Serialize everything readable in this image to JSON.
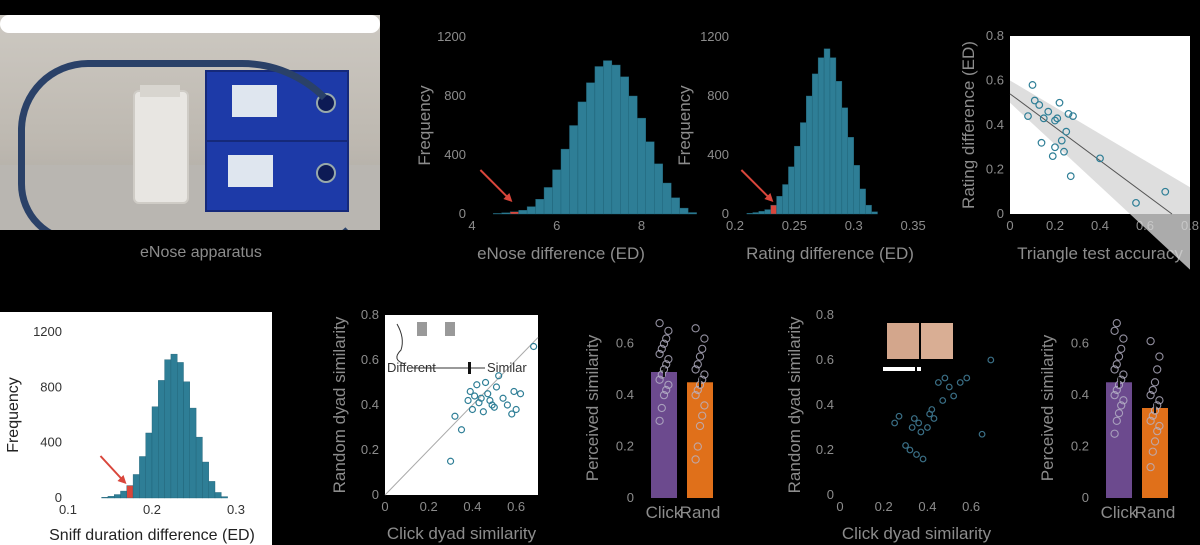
{
  "photo": {
    "caption": "eNose apparatus"
  },
  "chart_data": [
    {
      "id": "enose_hist",
      "type": "bar",
      "xlabel": "eNose difference (ED)",
      "ylabel": "Frequency",
      "xlim": [
        4,
        8.2
      ],
      "ylim": [
        0,
        1200
      ],
      "xticks": [
        "4",
        "6",
        "8"
      ],
      "yticks": [
        "0",
        "400",
        "800",
        "1200"
      ],
      "bin_start": 4.5,
      "bin_width": 0.2,
      "values": [
        4,
        8,
        15,
        25,
        50,
        100,
        180,
        300,
        440,
        600,
        760,
        890,
        1000,
        1040,
        1010,
        930,
        800,
        650,
        490,
        340,
        210,
        110,
        40,
        10
      ],
      "observed": 5.0,
      "observed_color": "#d9463b"
    },
    {
      "id": "rating_hist",
      "type": "bar",
      "xlabel": "Rating difference (ED)",
      "ylabel": "Frequency",
      "xlim": [
        0.2,
        0.36
      ],
      "ylim": [
        0,
        1200
      ],
      "xticks": [
        "0.2",
        "0.25",
        "0.3",
        "0.35"
      ],
      "yticks": [
        "0",
        "400",
        "800",
        "1200"
      ],
      "bin_start": 0.21,
      "bin_width": 0.005,
      "values": [
        5,
        10,
        18,
        30,
        60,
        120,
        200,
        320,
        460,
        620,
        800,
        950,
        1060,
        1120,
        1060,
        900,
        720,
        520,
        330,
        170,
        60,
        15
      ],
      "observed": 0.234,
      "observed_color": "#d9463b"
    },
    {
      "id": "triangle_scatter",
      "type": "scatter",
      "xlabel": "Triangle test accuracy",
      "ylabel": "Rating difference (ED)",
      "xlim": [
        0,
        0.8
      ],
      "ylim": [
        0,
        0.8
      ],
      "xticks": [
        "0",
        "0.2",
        "0.4",
        "0.6",
        "0.8"
      ],
      "yticks": [
        "0",
        "0.2",
        "0.4",
        "0.6",
        "0.8"
      ],
      "x": [
        0.08,
        0.1,
        0.11,
        0.13,
        0.14,
        0.15,
        0.17,
        0.19,
        0.2,
        0.2,
        0.21,
        0.22,
        0.23,
        0.24,
        0.25,
        0.26,
        0.27,
        0.28,
        0.4,
        0.56,
        0.69
      ],
      "y": [
        0.44,
        0.58,
        0.51,
        0.49,
        0.32,
        0.43,
        0.46,
        0.26,
        0.42,
        0.3,
        0.43,
        0.5,
        0.33,
        0.28,
        0.37,
        0.45,
        0.17,
        0.44,
        0.25,
        0.05,
        0.1
      ],
      "fit": {
        "x": [
          0,
          0.8
        ],
        "y": [
          0.54,
          -0.08
        ]
      }
    },
    {
      "id": "sniff_hist",
      "type": "bar",
      "xlabel": "Sniff duration difference (ED)",
      "ylabel": "Frequency",
      "xlim": [
        0.1,
        0.3
      ],
      "ylim": [
        0,
        1200
      ],
      "xticks": [
        "0.1",
        "0.2",
        "0.3"
      ],
      "yticks": [
        "0",
        "400",
        "800",
        "1200"
      ],
      "bin_start": 0.14,
      "bin_width": 0.0075,
      "values": [
        5,
        12,
        25,
        50,
        90,
        170,
        300,
        470,
        660,
        850,
        1000,
        1040,
        980,
        840,
        650,
        440,
        260,
        120,
        40,
        10
      ],
      "observed": 0.172,
      "observed_color": "#d9463b"
    },
    {
      "id": "click_scatter",
      "type": "scatter",
      "xlabel": "Click dyad similarity",
      "ylabel": "Random dyad similarity",
      "xlim": [
        0,
        0.7
      ],
      "ylim": [
        0,
        0.8
      ],
      "xticks": [
        "0",
        "0.2",
        "0.4",
        "0.6"
      ],
      "yticks": [
        "0",
        "0.2",
        "0.4",
        "0.6",
        "0.8"
      ],
      "inset_left": "Different",
      "inset_right": "Similar",
      "x": [
        0.3,
        0.32,
        0.35,
        0.38,
        0.39,
        0.4,
        0.41,
        0.42,
        0.43,
        0.44,
        0.45,
        0.46,
        0.47,
        0.48,
        0.49,
        0.5,
        0.51,
        0.52,
        0.54,
        0.56,
        0.58,
        0.59,
        0.6,
        0.62,
        0.68
      ],
      "y": [
        0.15,
        0.35,
        0.29,
        0.42,
        0.46,
        0.38,
        0.44,
        0.49,
        0.41,
        0.43,
        0.37,
        0.5,
        0.45,
        0.42,
        0.4,
        0.39,
        0.48,
        0.53,
        0.43,
        0.4,
        0.36,
        0.46,
        0.38,
        0.45,
        0.66
      ],
      "identity_line": true
    },
    {
      "id": "click_bar",
      "type": "bar",
      "ylabel": "Perceived similarity",
      "ylim": [
        0,
        0.7
      ],
      "yticks": [
        "0",
        "0.2",
        "0.4",
        "0.6"
      ],
      "categories": [
        "Click",
        "Rand"
      ],
      "values": [
        0.49,
        0.45
      ],
      "errors": [
        0.02,
        0.02
      ],
      "colors": [
        "#6c4a8e",
        "#e0701a"
      ],
      "points": [
        [
          0.3,
          0.35,
          0.4,
          0.42,
          0.44,
          0.46,
          0.48,
          0.5,
          0.52,
          0.54,
          0.56,
          0.58,
          0.6,
          0.62,
          0.65,
          0.68
        ],
        [
          0.15,
          0.2,
          0.28,
          0.32,
          0.36,
          0.4,
          0.42,
          0.44,
          0.46,
          0.48,
          0.5,
          0.52,
          0.55,
          0.58,
          0.62,
          0.66
        ]
      ]
    },
    {
      "id": "face_scatter",
      "type": "scatter",
      "xlabel": "Click dyad similarity",
      "ylabel": "Random dyad similarity",
      "xlim": [
        0,
        0.7
      ],
      "ylim": [
        0,
        0.8
      ],
      "xticks": [
        "0",
        "0.2",
        "0.4",
        "0.6"
      ],
      "yticks": [
        "0",
        "0.2",
        "0.4",
        "0.6",
        "0.8"
      ],
      "x": [
        0.25,
        0.27,
        0.3,
        0.32,
        0.33,
        0.34,
        0.35,
        0.36,
        0.37,
        0.38,
        0.4,
        0.41,
        0.42,
        0.43,
        0.45,
        0.47,
        0.48,
        0.5,
        0.52,
        0.55,
        0.58,
        0.65,
        0.69
      ],
      "y": [
        0.32,
        0.35,
        0.22,
        0.2,
        0.3,
        0.34,
        0.18,
        0.32,
        0.28,
        0.16,
        0.3,
        0.36,
        0.38,
        0.34,
        0.5,
        0.42,
        0.52,
        0.48,
        0.44,
        0.5,
        0.52,
        0.27,
        0.6
      ]
    },
    {
      "id": "face_bar",
      "type": "bar",
      "ylabel": "Perceived similarity",
      "ylim": [
        0,
        0.7
      ],
      "yticks": [
        "0",
        "0.2",
        "0.4",
        "0.6"
      ],
      "categories": [
        "Click",
        "Rand"
      ],
      "values": [
        0.45,
        0.35
      ],
      "errors": [
        0.02,
        0.02
      ],
      "colors": [
        "#6c4a8e",
        "#e0701a"
      ],
      "points": [
        [
          0.25,
          0.3,
          0.33,
          0.36,
          0.38,
          0.4,
          0.42,
          0.44,
          0.46,
          0.48,
          0.5,
          0.52,
          0.55,
          0.58,
          0.62,
          0.65,
          0.68
        ],
        [
          0.12,
          0.18,
          0.22,
          0.26,
          0.28,
          0.3,
          0.32,
          0.34,
          0.36,
          0.38,
          0.4,
          0.42,
          0.45,
          0.5,
          0.55,
          0.61
        ]
      ]
    }
  ]
}
